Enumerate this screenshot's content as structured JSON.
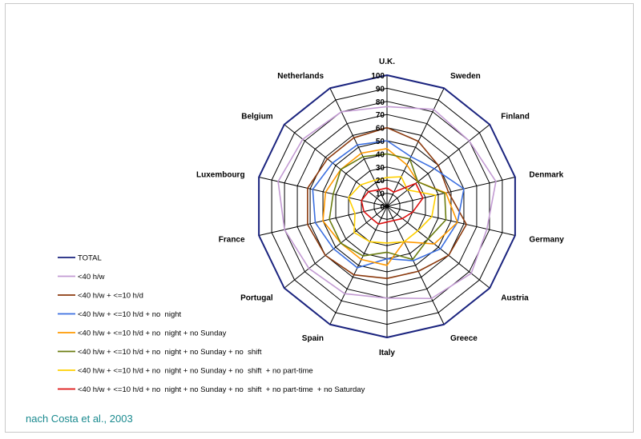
{
  "source_note": "nach Costa et al., 2003",
  "chart_data": {
    "type": "radar",
    "title": "",
    "categories": [
      "U.K.",
      "Sweden",
      "Finland",
      "Denmark",
      "Germany",
      "Austria",
      "Greece",
      "Italy",
      "Spain",
      "Portugal",
      "France",
      "Luxembourg",
      "Belgium",
      "Netherlands"
    ],
    "ticks": [
      0,
      10,
      20,
      30,
      40,
      50,
      60,
      70,
      80,
      90,
      100
    ],
    "range": [
      0,
      100
    ],
    "grid": true,
    "legend_position": "left-bottom",
    "series": [
      {
        "name": "TOTAL",
        "color": "#1a237e",
        "values": [
          100,
          100,
          100,
          100,
          100,
          100,
          100,
          100,
          100,
          100,
          100,
          100,
          100,
          100
        ]
      },
      {
        "name": "<40 h/w",
        "color": "#c39bd3",
        "values": [
          76,
          82,
          80,
          85,
          78,
          82,
          78,
          70,
          74,
          76,
          80,
          85,
          82,
          80
        ]
      },
      {
        "name": "<40 h/w + <=10 h/d",
        "color": "#8b3a0e",
        "values": [
          60,
          55,
          50,
          48,
          62,
          60,
          55,
          55,
          58,
          60,
          62,
          62,
          58,
          58
        ]
      },
      {
        "name": "<40 h/w + <=10 h/d + no  night",
        "color": "#3b6fe0",
        "values": [
          50,
          42,
          46,
          60,
          55,
          52,
          46,
          40,
          52,
          52,
          56,
          58,
          53,
          52
        ]
      },
      {
        "name": "<40 h/w + <=10 h/d + no  night + no Sunday",
        "color": "#ff9900",
        "values": [
          44,
          35,
          30,
          46,
          55,
          46,
          30,
          45,
          45,
          45,
          50,
          48,
          45,
          45
        ]
      },
      {
        "name": "<40 h/w + <=10 h/d + no  night + no Sunday + no  shift",
        "color": "#6b7d12",
        "values": [
          40,
          40,
          30,
          45,
          46,
          40,
          45,
          35,
          42,
          45,
          45,
          42,
          45,
          42
        ]
      },
      {
        "name": "<40 h/w + <=10 h/d + no  night + no Sunday + no  shift  + no part-time",
        "color": "#ffd000",
        "values": [
          22,
          25,
          20,
          38,
          35,
          30,
          30,
          28,
          30,
          32,
          25,
          30,
          26,
          22
        ]
      },
      {
        "name": "<40 h/w + <=10 h/d + no  night + no Sunday + no  shift  + no part-time  + no Saturday",
        "color": "#dd1111",
        "values": [
          14,
          12,
          28,
          28,
          20,
          15,
          12,
          12,
          15,
          15,
          18,
          20,
          18,
          14
        ]
      }
    ]
  }
}
